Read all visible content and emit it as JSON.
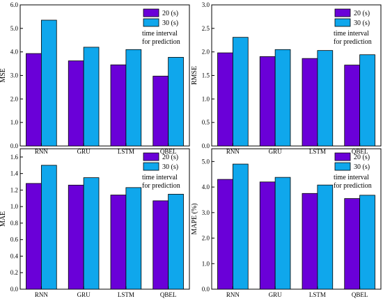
{
  "colors": {
    "s20": "#6A00D8",
    "s30": "#0FA7EC",
    "edge": "#000000"
  },
  "legend": {
    "labels": [
      "20 (s)",
      "30 (s)"
    ],
    "note": [
      "time interval",
      "for prediction"
    ]
  },
  "chart_data": [
    {
      "type": "bar",
      "categories": [
        "RNN",
        "GRU",
        "LSTM",
        "QBEL"
      ],
      "ylabel": "MSE",
      "ylim": [
        0,
        6.0
      ],
      "yticks": [
        "0.0",
        "1.0",
        "2.0",
        "3.0",
        "4.0",
        "5.0",
        "6.0"
      ],
      "series": [
        {
          "name": "20 (s)",
          "values": [
            3.93,
            3.62,
            3.45,
            2.97
          ]
        },
        {
          "name": "30 (s)",
          "values": [
            5.35,
            4.2,
            4.1,
            3.77
          ]
        }
      ]
    },
    {
      "type": "bar",
      "categories": [
        "RNN",
        "GRU",
        "LSTM",
        "QBEL"
      ],
      "ylabel": "RMSE",
      "ylim": [
        0,
        3.0
      ],
      "yticks": [
        "0.0",
        "0.5",
        "1.0",
        "1.5",
        "2.0",
        "2.5",
        "3.0"
      ],
      "series": [
        {
          "name": "20 (s)",
          "values": [
            1.98,
            1.9,
            1.86,
            1.72
          ]
        },
        {
          "name": "30 (s)",
          "values": [
            2.31,
            2.05,
            2.03,
            1.94
          ]
        }
      ]
    },
    {
      "type": "bar",
      "categories": [
        "RNN",
        "GRU",
        "LSTM",
        "QBEL"
      ],
      "ylabel": "MAE",
      "ylim": [
        0,
        1.7
      ],
      "yticks": [
        "0.0",
        "0.2",
        "0.4",
        "0.6",
        "0.8",
        "1.0",
        "1.2",
        "1.4",
        "1.6"
      ],
      "series": [
        {
          "name": "20 (s)",
          "values": [
            1.28,
            1.26,
            1.14,
            1.07
          ]
        },
        {
          "name": "30 (s)",
          "values": [
            1.5,
            1.35,
            1.23,
            1.15
          ]
        }
      ]
    },
    {
      "type": "bar",
      "categories": [
        "RNN",
        "GRU",
        "LSTM",
        "QBEL"
      ],
      "ylabel": "MAPE (%)",
      "ylim": [
        0,
        5.5
      ],
      "yticks": [
        "0.0",
        "1.0",
        "2.0",
        "3.0",
        "4.0",
        "5.0"
      ],
      "series": [
        {
          "name": "20 (s)",
          "values": [
            4.3,
            4.2,
            3.75,
            3.55
          ]
        },
        {
          "name": "30 (s)",
          "values": [
            4.9,
            4.38,
            4.08,
            3.68
          ]
        }
      ]
    }
  ]
}
